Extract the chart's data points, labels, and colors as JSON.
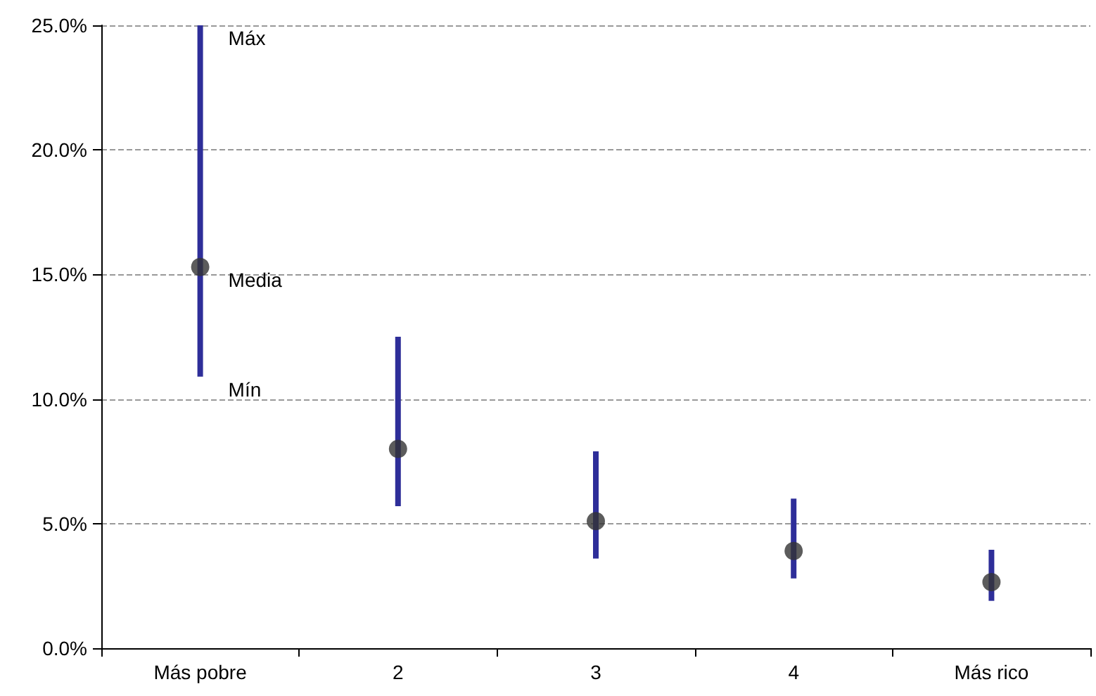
{
  "chart_data": {
    "type": "bar",
    "categories": [
      "Más pobre",
      "2",
      "3",
      "4",
      "Más rico"
    ],
    "series": [
      {
        "type": "bar",
        "color": "#2e2e99",
        "base": [
          10.9,
          5.7,
          3.6,
          2.8,
          1.9
        ],
        "values": [
          14.1,
          6.8,
          4.3,
          3.2,
          2.05
        ]
      },
      {
        "type": "scatter",
        "color": "#333333",
        "x": [
          "Más pobre",
          "2",
          "3",
          "4",
          "Más rico"
        ],
        "values": [
          15.3,
          8.0,
          5.1,
          3.9,
          2.65
        ]
      }
    ],
    "ylim": [
      0,
      25
    ],
    "yticks": [
      {
        "value": 0,
        "label": "0.0%"
      },
      {
        "value": 5,
        "label": "5.0%"
      },
      {
        "value": 10,
        "label": "10.0%"
      },
      {
        "value": 15,
        "label": "15.0%"
      },
      {
        "value": 20,
        "label": "20.0%"
      },
      {
        "value": 25,
        "label": "25.0%"
      }
    ],
    "grid": "y",
    "line_style": "dashed",
    "marker": "circle",
    "annotations": [
      {
        "text": "Máx",
        "x": "Más pobre",
        "y": 25
      },
      {
        "text": "Media",
        "x": "Más pobre",
        "y": 15.3
      },
      {
        "text": "Mín",
        "x": "Más pobre",
        "y": 10.9
      }
    ]
  }
}
